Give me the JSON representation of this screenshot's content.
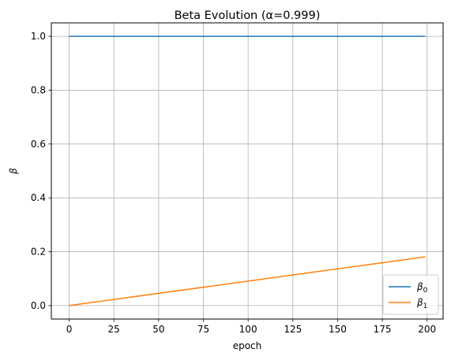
{
  "chart_data": {
    "type": "line",
    "title": "Beta Evolution (α=0.999)",
    "xlabel": "epoch",
    "ylabel": "β",
    "xlim": [
      -9.95,
      208.95
    ],
    "ylim": [
      -0.05,
      1.05
    ],
    "x_ticks": [
      0,
      25,
      50,
      75,
      100,
      125,
      150,
      175,
      200
    ],
    "y_ticks": [
      0.0,
      0.2,
      0.4,
      0.6,
      0.8,
      1.0
    ],
    "grid": true,
    "legend_position": "lower-right",
    "series": [
      {
        "name": "β0",
        "label_base": "β",
        "label_sub": "0",
        "color": "#1f77b4",
        "x": [
          0,
          199
        ],
        "y": [
          1.0,
          1.0
        ]
      },
      {
        "name": "β1",
        "label_base": "β",
        "label_sub": "1",
        "color": "#ff7f0e",
        "x": [
          0,
          199
        ],
        "y": [
          0.0,
          0.181
        ]
      }
    ]
  }
}
